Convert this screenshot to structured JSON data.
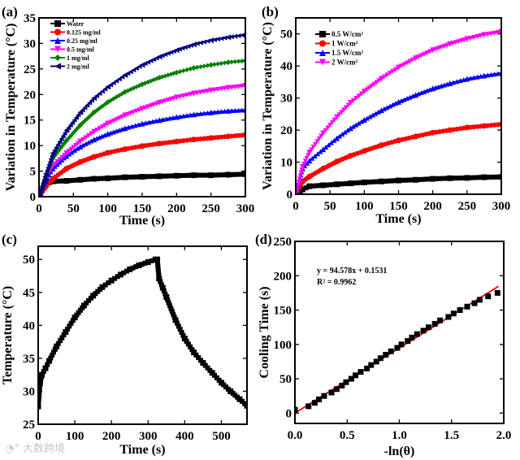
{
  "watermark": "大数跨境",
  "chart_data": [
    {
      "panel_label": "(a)",
      "type": "line",
      "xlabel": "Time (s)",
      "ylabel": "Variation in Temperature (°C)",
      "xlim": [
        0,
        300
      ],
      "ylim": [
        0,
        35
      ],
      "xticks": [
        0,
        50,
        100,
        150,
        200,
        250,
        300
      ],
      "yticks": [
        0,
        5,
        10,
        15,
        20,
        25,
        30,
        35
      ],
      "legend_position": "top-left",
      "x": [
        0,
        10,
        20,
        40,
        60,
        80,
        100,
        125,
        150,
        175,
        200,
        225,
        250,
        275,
        300
      ],
      "series": [
        {
          "name": "Water",
          "color": "#000000",
          "marker": "square",
          "values": [
            0,
            2.5,
            3,
            3.1,
            3.3,
            3.5,
            3.6,
            3.8,
            3.9,
            4.0,
            4.1,
            4.2,
            4.2,
            4.3,
            4.4
          ]
        },
        {
          "name": "0.125 mg/ml",
          "color": "#ff0000",
          "marker": "circle",
          "values": [
            0,
            2,
            3.5,
            5.5,
            6.8,
            7.8,
            8.6,
            9.3,
            9.9,
            10.4,
            10.8,
            11.2,
            11.5,
            11.8,
            12.1
          ]
        },
        {
          "name": "0.25 mg/ml",
          "color": "#0000ff",
          "marker": "triangle-up",
          "values": [
            0,
            3,
            5.5,
            8,
            9.8,
            11.2,
            12.3,
            13.4,
            14.3,
            15.0,
            15.6,
            16.1,
            16.5,
            16.8,
            17.0
          ]
        },
        {
          "name": "0.5 mg/ml",
          "color": "#ff00ff",
          "marker": "triangle-down",
          "values": [
            0,
            3.5,
            6,
            8.5,
            10.8,
            12.7,
            14.3,
            15.9,
            17.2,
            18.4,
            19.4,
            20.2,
            20.8,
            21.3,
            21.7
          ]
        },
        {
          "name": "1 mg/ml",
          "color": "#008000",
          "marker": "diamond",
          "values": [
            0,
            4,
            7.5,
            11,
            14,
            16.5,
            18.5,
            20.5,
            22,
            23.3,
            24.3,
            25.2,
            25.8,
            26.3,
            26.6
          ]
        },
        {
          "name": "2 mg/ml",
          "color": "#000080",
          "marker": "triangle-left",
          "values": [
            0,
            4.5,
            8.5,
            13,
            16.5,
            19.3,
            21.5,
            23.8,
            25.8,
            27.4,
            28.7,
            29.8,
            30.6,
            31.2,
            31.7
          ]
        }
      ]
    },
    {
      "panel_label": "(b)",
      "type": "line",
      "xlabel": "Time (s)",
      "ylabel": "Variation in Temperature (°C)",
      "xlim": [
        0,
        300
      ],
      "ylim": [
        0,
        55
      ],
      "xticks": [
        0,
        50,
        100,
        150,
        200,
        250,
        300
      ],
      "yticks": [
        0,
        10,
        20,
        30,
        40,
        50
      ],
      "legend_position": "top-left",
      "x": [
        0,
        10,
        20,
        40,
        60,
        80,
        100,
        125,
        150,
        175,
        200,
        225,
        250,
        275,
        300
      ],
      "series": [
        {
          "name": "0.5 W/cm²",
          "color": "#000000",
          "marker": "square",
          "values": [
            0,
            1.5,
            2.5,
            2.8,
            3.1,
            3.4,
            3.7,
            4,
            4.3,
            4.5,
            4.8,
            5,
            5.1,
            5.3,
            5.4
          ]
        },
        {
          "name": "1 W/cm²",
          "color": "#ff0000",
          "marker": "circle",
          "values": [
            0,
            4,
            5.5,
            8,
            10.2,
            12,
            13.5,
            15.3,
            16.8,
            18,
            19.2,
            20,
            20.8,
            21.3,
            21.8
          ]
        },
        {
          "name": "1.5 W/cm²",
          "color": "#0000ff",
          "marker": "triangle-up",
          "values": [
            0,
            8,
            10.5,
            14,
            17.5,
            20.6,
            23.2,
            26.2,
            28.8,
            31,
            33,
            34.6,
            36,
            37,
            37.8
          ]
        },
        {
          "name": "2 W/cm²",
          "color": "#ff00ff",
          "marker": "triangle-down",
          "values": [
            0,
            8.5,
            13,
            19,
            24,
            28.5,
            32,
            36,
            39.5,
            42.4,
            44.9,
            46.8,
            48.4,
            49.7,
            50.6
          ]
        }
      ]
    },
    {
      "panel_label": "(c)",
      "type": "line",
      "xlabel": "Time (s)",
      "ylabel": "Temperature (°C)",
      "xlim": [
        0,
        570
      ],
      "ylim": [
        25,
        52
      ],
      "xticks": [
        0,
        100,
        200,
        300,
        400,
        500
      ],
      "yticks": [
        25,
        30,
        35,
        40,
        45,
        50
      ],
      "x": [
        0,
        5,
        10,
        20,
        30,
        50,
        75,
        100,
        125,
        150,
        175,
        200,
        225,
        250,
        275,
        300,
        320,
        325,
        330,
        340,
        350,
        375,
        400,
        425,
        450,
        475,
        500,
        525,
        550,
        570
      ],
      "series": [
        {
          "name": "Temperature",
          "color": "#000000",
          "marker": "square",
          "values": [
            27.7,
            31.2,
            32.5,
            33.5,
            34.6,
            36.8,
            39.0,
            41.2,
            43.0,
            44.5,
            45.8,
            46.8,
            47.7,
            48.5,
            49.1,
            49.6,
            50.0,
            50.0,
            47.1,
            45.7,
            44.3,
            40.8,
            38.0,
            35.9,
            34.3,
            32.8,
            31.3,
            30.0,
            28.8,
            27.8
          ]
        }
      ]
    },
    {
      "panel_label": "(d)",
      "type": "scatter",
      "xlabel": "-ln(θ)",
      "ylabel": "Cooling Time (s)",
      "xlim": [
        0,
        2.0
      ],
      "ylim": [
        -15,
        250
      ],
      "xticks": [
        0.0,
        0.5,
        1.0,
        1.5,
        2.0
      ],
      "yticks": [
        0,
        50,
        100,
        150,
        200,
        250
      ],
      "annotation": [
        "y = 94.578x + 0.1531",
        "R² = 0.9962"
      ],
      "fit": {
        "slope": 94.578,
        "intercept": 0.1531,
        "x_range": [
          0,
          1.95
        ],
        "color": "#ff0000"
      },
      "x": [
        0.0,
        0.13,
        0.19,
        0.23,
        0.28,
        0.35,
        0.4,
        0.45,
        0.49,
        0.54,
        0.58,
        0.63,
        0.69,
        0.73,
        0.78,
        0.82,
        0.87,
        0.92,
        0.98,
        1.02,
        1.08,
        1.12,
        1.17,
        1.23,
        1.28,
        1.34,
        1.39,
        1.47,
        1.52,
        1.58,
        1.65,
        1.72,
        1.77,
        1.85,
        1.94
      ],
      "series": [
        {
          "name": "Cooling Time",
          "color": "#000000",
          "marker": "square",
          "values": [
            5,
            10,
            15,
            20,
            25,
            30,
            35,
            40,
            45,
            50,
            55,
            60,
            65,
            70,
            75,
            80,
            85,
            90,
            95,
            100,
            105,
            110,
            115,
            120,
            125,
            130,
            135,
            140,
            145,
            150,
            155,
            160,
            165,
            170,
            175
          ]
        }
      ]
    }
  ]
}
